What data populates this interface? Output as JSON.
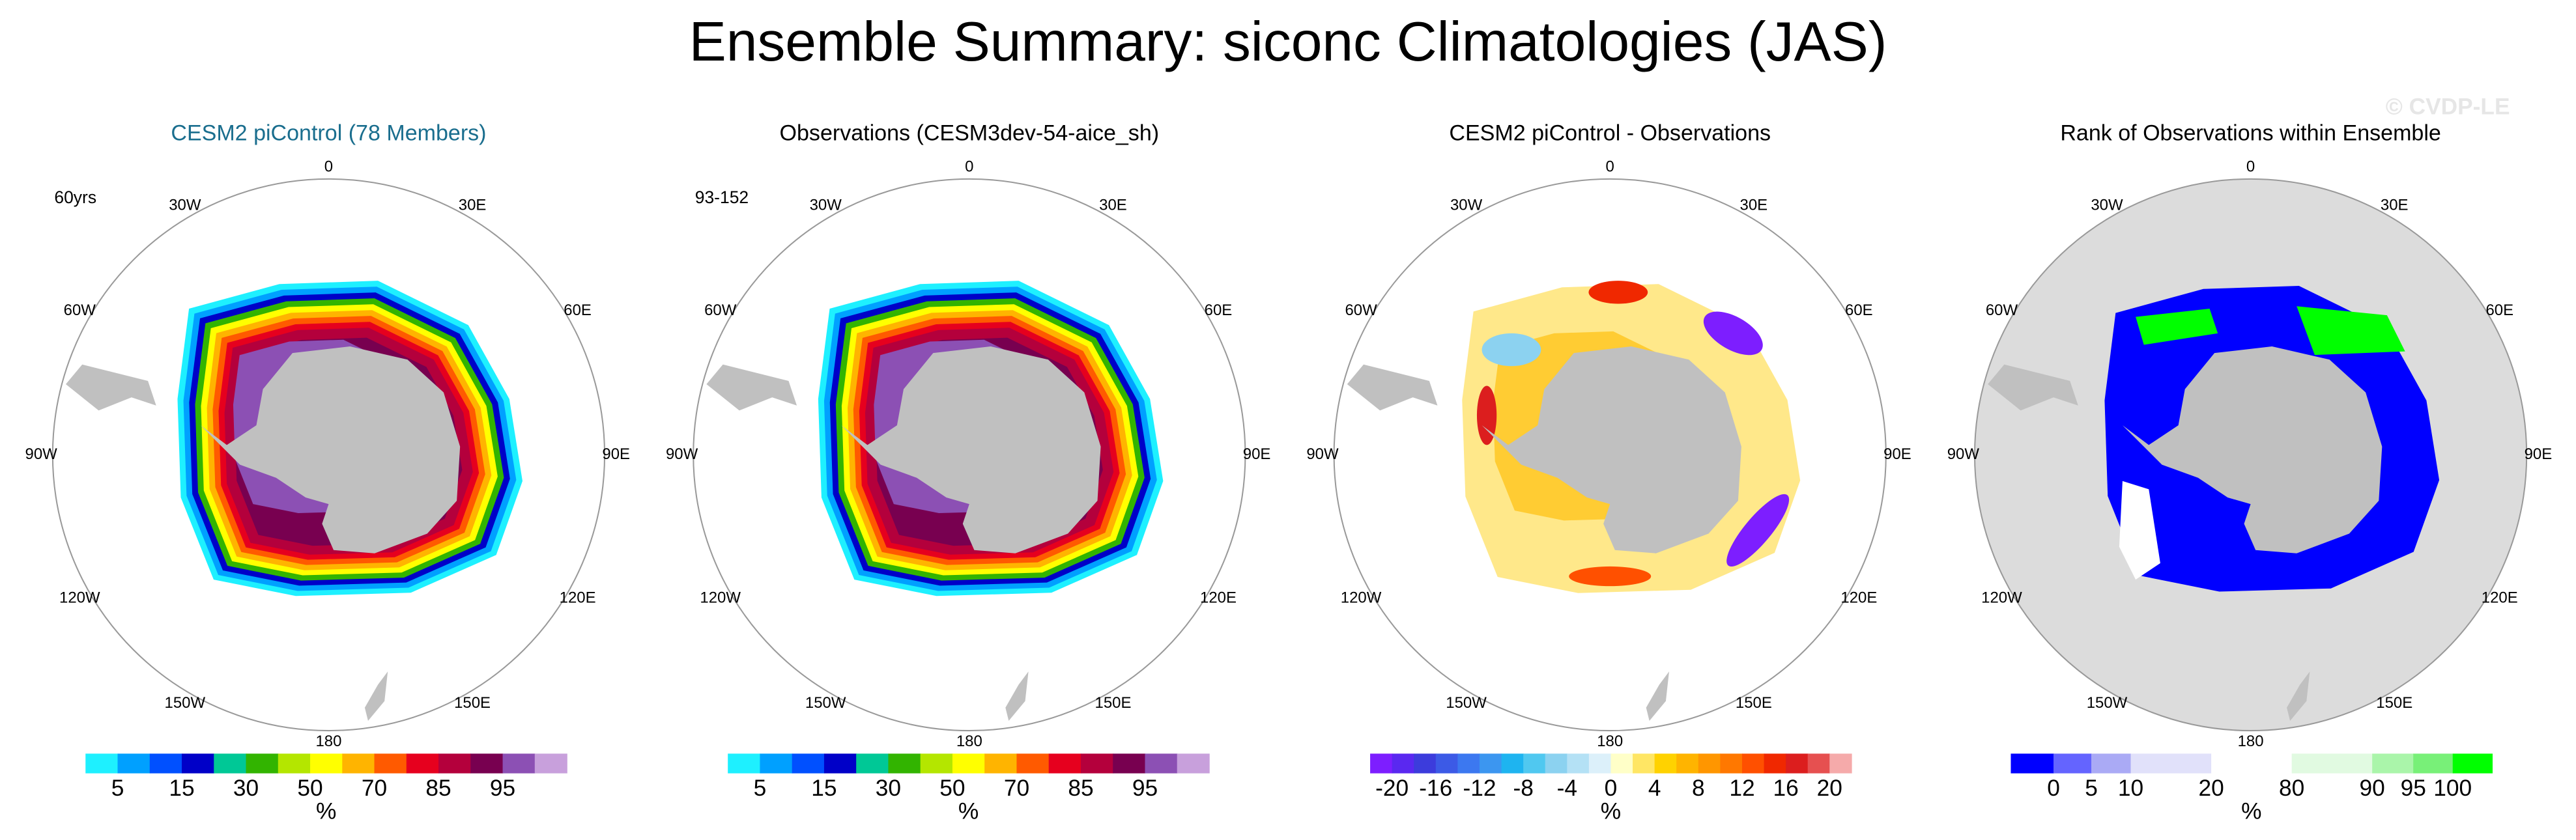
{
  "title": "Ensemble Summary: siconc Climatologies (JAS)",
  "watermark": "© CVDP-LE",
  "longitude_labels": [
    "0",
    "30E",
    "60E",
    "90E",
    "120E",
    "150E",
    "180",
    "150W",
    "120W",
    "90W",
    "60W",
    "30W"
  ],
  "panels": [
    {
      "title": "CESM2 piControl (78 Members)",
      "note": "60yrs",
      "colorbar": {
        "colors": [
          "#1ef0ff",
          "#00a0ff",
          "#0050ff",
          "#0000c8",
          "#00c896",
          "#32b400",
          "#b4e600",
          "#ffff00",
          "#ffb400",
          "#ff5a00",
          "#e6001e",
          "#b4003c",
          "#780050",
          "#8c50b4",
          "#c8a0dc"
        ],
        "labels": [
          5,
          15,
          30,
          50,
          70,
          85,
          95
        ],
        "unit": "%"
      }
    },
    {
      "title": "Observations (CESM3dev-54-aice_sh)",
      "note": "93-152",
      "colorbar": {
        "colors": [
          "#1ef0ff",
          "#00a0ff",
          "#0050ff",
          "#0000c8",
          "#00c896",
          "#32b400",
          "#b4e600",
          "#ffff00",
          "#ffb400",
          "#ff5a00",
          "#e6001e",
          "#b4003c",
          "#780050",
          "#8c50b4",
          "#c8a0dc"
        ],
        "labels": [
          5,
          15,
          30,
          50,
          70,
          85,
          95
        ],
        "unit": "%"
      }
    },
    {
      "title": "CESM2 piControl - Observations",
      "colorbar": {
        "colors": [
          "#7d1eff",
          "#5a28f0",
          "#3c3cdc",
          "#3c5ae6",
          "#3c78f0",
          "#3c96f0",
          "#1eb4f0",
          "#50c8f0",
          "#8cd2f0",
          "#b4e1f5",
          "#dcf0fa",
          "#ffffc8",
          "#ffe664",
          "#ffd200",
          "#ffb400",
          "#ff9600",
          "#ff7800",
          "#ff5000",
          "#f02800",
          "#dc1e1e",
          "#e65050",
          "#f5aaaa"
        ],
        "labels": [
          -20,
          -16,
          -12,
          -8,
          -4,
          0,
          4,
          8,
          12,
          16,
          20
        ],
        "unit": "%"
      }
    },
    {
      "title": "Rank of Observations within Ensemble",
      "colorbar": {
        "colors": [
          "#0000ff",
          "#6464ff",
          "#aaaaf5",
          "#e1e1fa",
          "#ffffff",
          "#e1fae1",
          "#aaf5aa",
          "#78f078",
          "#00ff00"
        ],
        "labels": [
          0,
          5,
          10,
          20,
          80,
          90,
          95,
          100
        ],
        "unit": "%"
      }
    }
  ]
}
